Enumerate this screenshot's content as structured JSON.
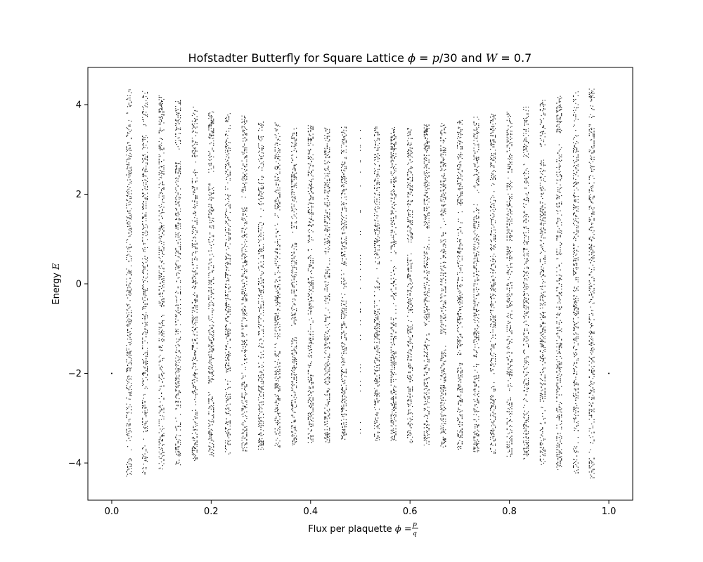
{
  "chart_data": {
    "type": "scatter",
    "title_parts": {
      "prefix": "Hofstadter Butterfly for Square Lattice ",
      "phi": "ϕ",
      "phi_eq": " = ",
      "p": "p",
      "per30": "/30 and ",
      "W": "W",
      "w_eq": " = 0.7"
    },
    "xlabel_parts": {
      "prefix": "Flux per plaquette ",
      "phi": "ϕ",
      "eq": " = ",
      "num": "p",
      "den": "q"
    },
    "ylabel_parts": {
      "prefix": "Energy ",
      "E": "E"
    },
    "xlim": [
      -0.048,
      1.048
    ],
    "ylim": [
      -4.83,
      4.83
    ],
    "x_ticks": [
      {
        "value": 0.0,
        "label": "0.0"
      },
      {
        "value": 0.2,
        "label": "0.2"
      },
      {
        "value": 0.4,
        "label": "0.4"
      },
      {
        "value": 0.6,
        "label": "0.6"
      },
      {
        "value": 0.8,
        "label": "0.8"
      },
      {
        "value": 1.0,
        "label": "1.0"
      }
    ],
    "y_ticks": [
      {
        "value": 4,
        "label": "4"
      },
      {
        "value": 2,
        "label": "2"
      },
      {
        "value": 0,
        "label": "0"
      },
      {
        "value": -2,
        "label": "−2"
      },
      {
        "value": -4,
        "label": "−4"
      }
    ],
    "marker_color": "#000000",
    "grid": false,
    "legend": "none",
    "flux_columns": [
      {
        "x": 0.0,
        "e_min": -2,
        "e_max": -2,
        "isolated": true
      },
      {
        "x": 0.0345,
        "e_min": -4.3,
        "e_max": 4.35
      },
      {
        "x": 0.0667,
        "e_min": -4.25,
        "e_max": 4.3
      },
      {
        "x": 0.1,
        "e_min": -4.15,
        "e_max": 4.2
      },
      {
        "x": 0.1333,
        "e_min": -4.05,
        "e_max": 4.1
      },
      {
        "x": 0.1667,
        "e_min": -3.95,
        "e_max": 3.95
      },
      {
        "x": 0.2,
        "e_min": -3.85,
        "e_max": 3.85
      },
      {
        "x": 0.2333,
        "e_min": -3.8,
        "e_max": 3.8
      },
      {
        "x": 0.2667,
        "e_min": -3.75,
        "e_max": 3.75
      },
      {
        "x": 0.3,
        "e_min": -3.7,
        "e_max": 3.65
      },
      {
        "x": 0.3333,
        "e_min": -3.65,
        "e_max": 3.6
      },
      {
        "x": 0.3667,
        "e_min": -3.6,
        "e_max": 3.55
      },
      {
        "x": 0.4,
        "e_min": -3.55,
        "e_max": 3.55
      },
      {
        "x": 0.4333,
        "e_min": -3.55,
        "e_max": 3.5
      },
      {
        "x": 0.4667,
        "e_min": -3.5,
        "e_max": 3.5
      },
      {
        "x": 0.5,
        "e_min": -3.45,
        "e_max": 3.45,
        "sparse": true
      },
      {
        "x": 0.5333,
        "e_min": -3.5,
        "e_max": 3.5
      },
      {
        "x": 0.5667,
        "e_min": -3.55,
        "e_max": 3.5
      },
      {
        "x": 0.6,
        "e_min": -3.55,
        "e_max": 3.55
      },
      {
        "x": 0.6333,
        "e_min": -3.6,
        "e_max": 3.55
      },
      {
        "x": 0.6667,
        "e_min": -3.65,
        "e_max": 3.6
      },
      {
        "x": 0.7,
        "e_min": -3.7,
        "e_max": 3.65
      },
      {
        "x": 0.7333,
        "e_min": -3.75,
        "e_max": 3.75
      },
      {
        "x": 0.7667,
        "e_min": -3.8,
        "e_max": 3.8
      },
      {
        "x": 0.8,
        "e_min": -3.85,
        "e_max": 3.85
      },
      {
        "x": 0.8333,
        "e_min": -3.95,
        "e_max": 3.95
      },
      {
        "x": 0.8667,
        "e_min": -4.05,
        "e_max": 4.1
      },
      {
        "x": 0.9,
        "e_min": -4.15,
        "e_max": 4.2
      },
      {
        "x": 0.9333,
        "e_min": -4.25,
        "e_max": 4.3
      },
      {
        "x": 0.9655,
        "e_min": -4.35,
        "e_max": 4.35
      },
      {
        "x": 1.0,
        "e_min": -2,
        "e_max": -2,
        "isolated": true
      }
    ]
  }
}
